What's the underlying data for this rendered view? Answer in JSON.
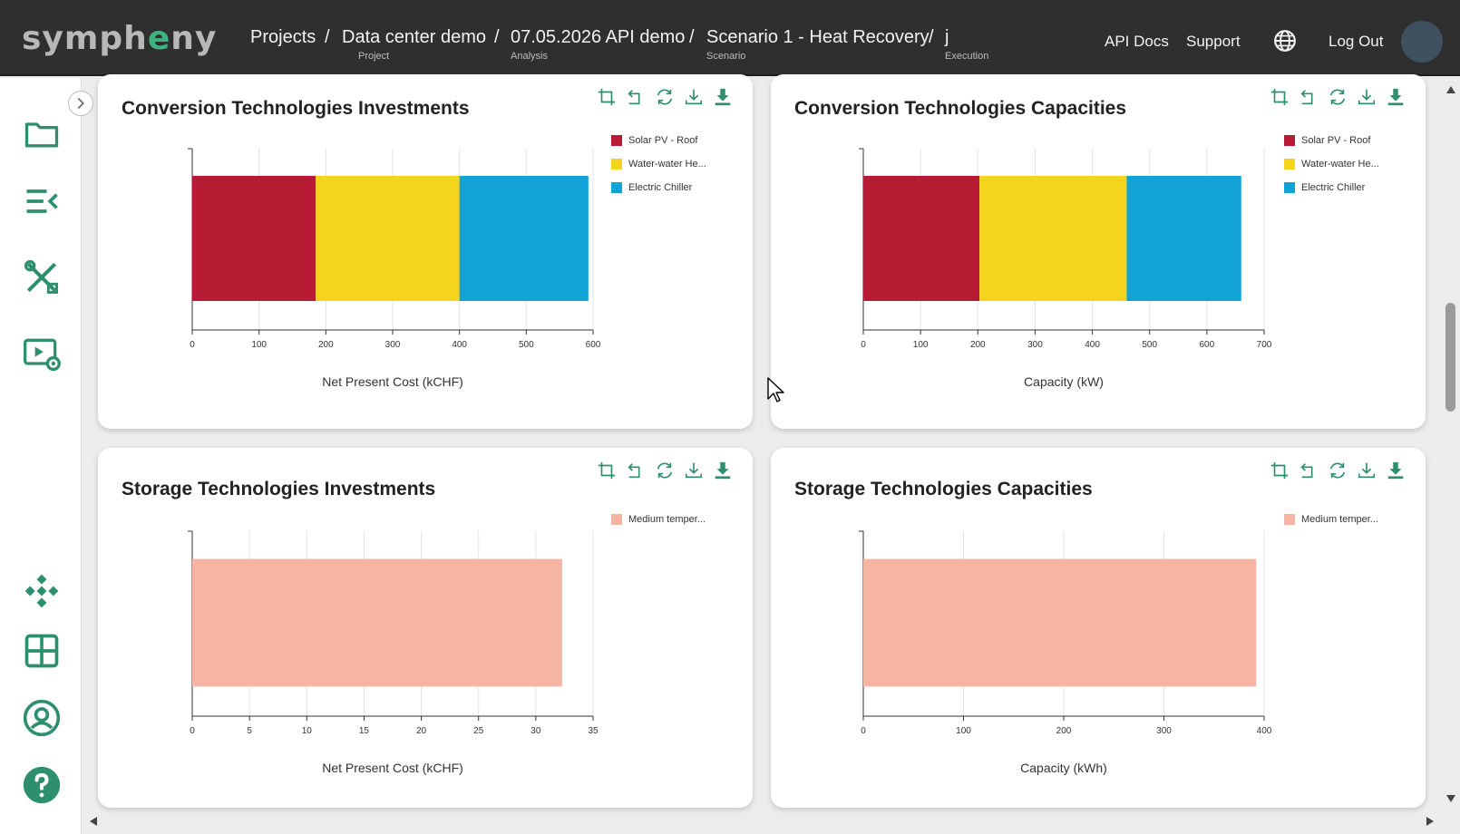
{
  "header": {
    "logo_left": "symph",
    "logo_accent": "e",
    "logo_right": "ny",
    "breadcrumbs": [
      {
        "title": "Projects",
        "sub": ""
      },
      {
        "title": "Data center demo",
        "sub": "Project"
      },
      {
        "title": "07.05.2026 API demo",
        "sub": "Analysis"
      },
      {
        "title": "Scenario 1 - Heat Recovery",
        "sub": "Scenario"
      },
      {
        "title": "j",
        "sub": "Execution"
      }
    ],
    "separator": "/",
    "api_docs": "API Docs",
    "support": "Support",
    "logout": "Log Out"
  },
  "sidebar": {
    "icons": [
      "folder-icon",
      "list-collapse-icon",
      "tools-icon",
      "video-settings-icon",
      "diamond-network-icon",
      "grid-icon",
      "user-circle-icon",
      "help-icon"
    ]
  },
  "colors": {
    "accent": "#2e8f6e",
    "solar": "#b81c35",
    "water": "#f5d51c",
    "chiller": "#12a3d6",
    "storage": "#f6b5a3"
  },
  "cards": {
    "conv_inv": {
      "title": "Conversion Technologies Investments",
      "legend": [
        "Solar PV - Roof",
        "Water-water He...",
        "Electric Chiller"
      ]
    },
    "conv_cap": {
      "title": "Conversion Technologies Capacities",
      "legend": [
        "Solar PV - Roof",
        "Water-water He...",
        "Electric Chiller"
      ]
    },
    "stor_inv": {
      "title": "Storage Technologies Investments",
      "legend": [
        "Medium temper..."
      ]
    },
    "stor_cap": {
      "title": "Storage Technologies Capacities",
      "legend": [
        "Medium temper..."
      ]
    }
  },
  "chart_data": [
    {
      "type": "bar",
      "orientation": "horizontal-stacked",
      "title": "Conversion Technologies Investments",
      "xlabel": "Net Present Cost (kCHF)",
      "xlim": [
        0,
        600
      ],
      "ticks": [
        0,
        100,
        200,
        300,
        400,
        500,
        600
      ],
      "series": [
        {
          "name": "Solar PV - Roof",
          "values": [
            185
          ]
        },
        {
          "name": "Water-water He...",
          "values": [
            215
          ]
        },
        {
          "name": "Electric Chiller",
          "values": [
            193
          ]
        }
      ],
      "legend_position": "top-right"
    },
    {
      "type": "bar",
      "orientation": "horizontal-stacked",
      "title": "Conversion Technologies Capacities",
      "xlabel": "Capacity (kW)",
      "xlim": [
        0,
        700
      ],
      "ticks": [
        0,
        100,
        200,
        300,
        400,
        500,
        600,
        700
      ],
      "series": [
        {
          "name": "Solar PV - Roof",
          "values": [
            203
          ]
        },
        {
          "name": "Water-water He...",
          "values": [
            257
          ]
        },
        {
          "name": "Electric Chiller",
          "values": [
            200
          ]
        }
      ],
      "legend_position": "top-right"
    },
    {
      "type": "bar",
      "orientation": "horizontal",
      "title": "Storage Technologies Investments",
      "xlabel": "Net Present Cost (kCHF)",
      "xlim": [
        0,
        35
      ],
      "ticks": [
        0,
        5,
        10,
        15,
        20,
        25,
        30,
        35
      ],
      "series": [
        {
          "name": "Medium temper...",
          "values": [
            32.3
          ]
        }
      ],
      "legend_position": "top-right"
    },
    {
      "type": "bar",
      "orientation": "horizontal",
      "title": "Storage Technologies Capacities",
      "xlabel": "Capacity (kWh)",
      "xlim": [
        0,
        400
      ],
      "ticks": [
        0,
        100,
        200,
        300,
        400
      ],
      "series": [
        {
          "name": "Medium temper...",
          "values": [
            392
          ]
        }
      ],
      "legend_position": "top-right"
    }
  ]
}
